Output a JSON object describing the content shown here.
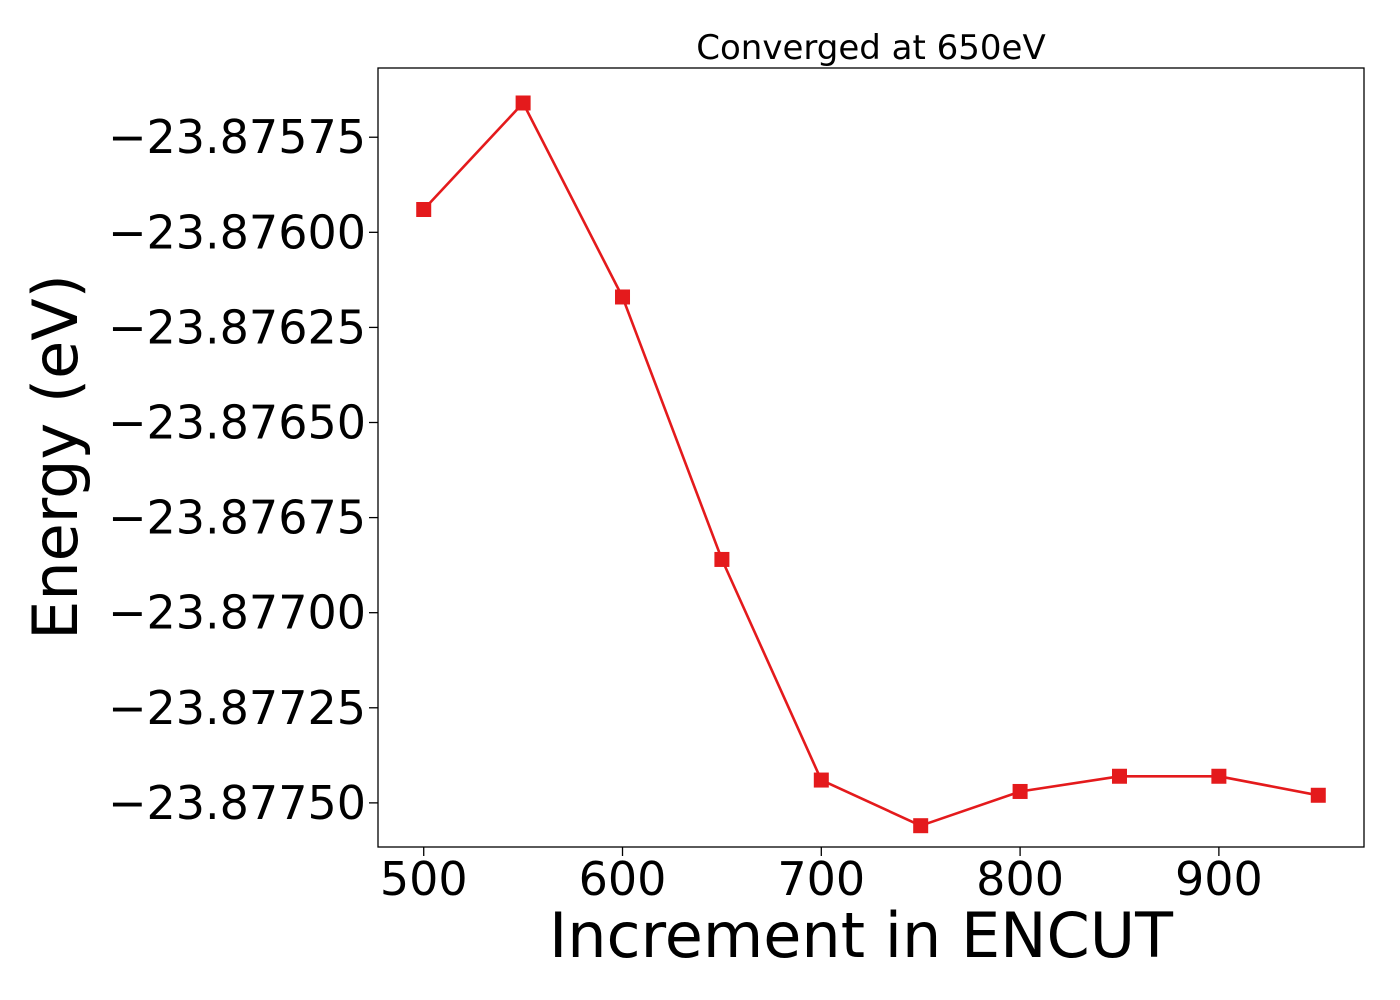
{
  "chart_data": {
    "type": "line",
    "title": "Converged at 650eV",
    "xlabel": "Increment in ENCUT",
    "ylabel": "Energy (eV)",
    "x": [
      500,
      550,
      600,
      650,
      700,
      750,
      800,
      850,
      900,
      950
    ],
    "series": [
      {
        "values": [
          -23.87594,
          -23.87566,
          -23.87617,
          -23.87686,
          -23.87744,
          -23.87756,
          -23.87747,
          -23.87743,
          -23.87743,
          -23.87748
        ],
        "color": "#e41a1c",
        "marker": "square"
      }
    ],
    "xlim": [
      477,
      973
    ],
    "ylim": [
      -23.877616,
      -23.875568
    ],
    "xticks": [
      500,
      600,
      700,
      800,
      900
    ],
    "xtick_labels": [
      "500",
      "600",
      "700",
      "800",
      "900"
    ],
    "yticks": [
      -23.87575,
      -23.876,
      -23.87625,
      -23.8765,
      -23.87675,
      -23.877,
      -23.87725,
      -23.8775
    ],
    "ytick_labels": [
      "−23.87575",
      "−23.87600",
      "−23.87625",
      "−23.87650",
      "−23.87675",
      "−23.87700",
      "−23.87725",
      "−23.87750"
    ],
    "grid": false,
    "legend": "none"
  }
}
